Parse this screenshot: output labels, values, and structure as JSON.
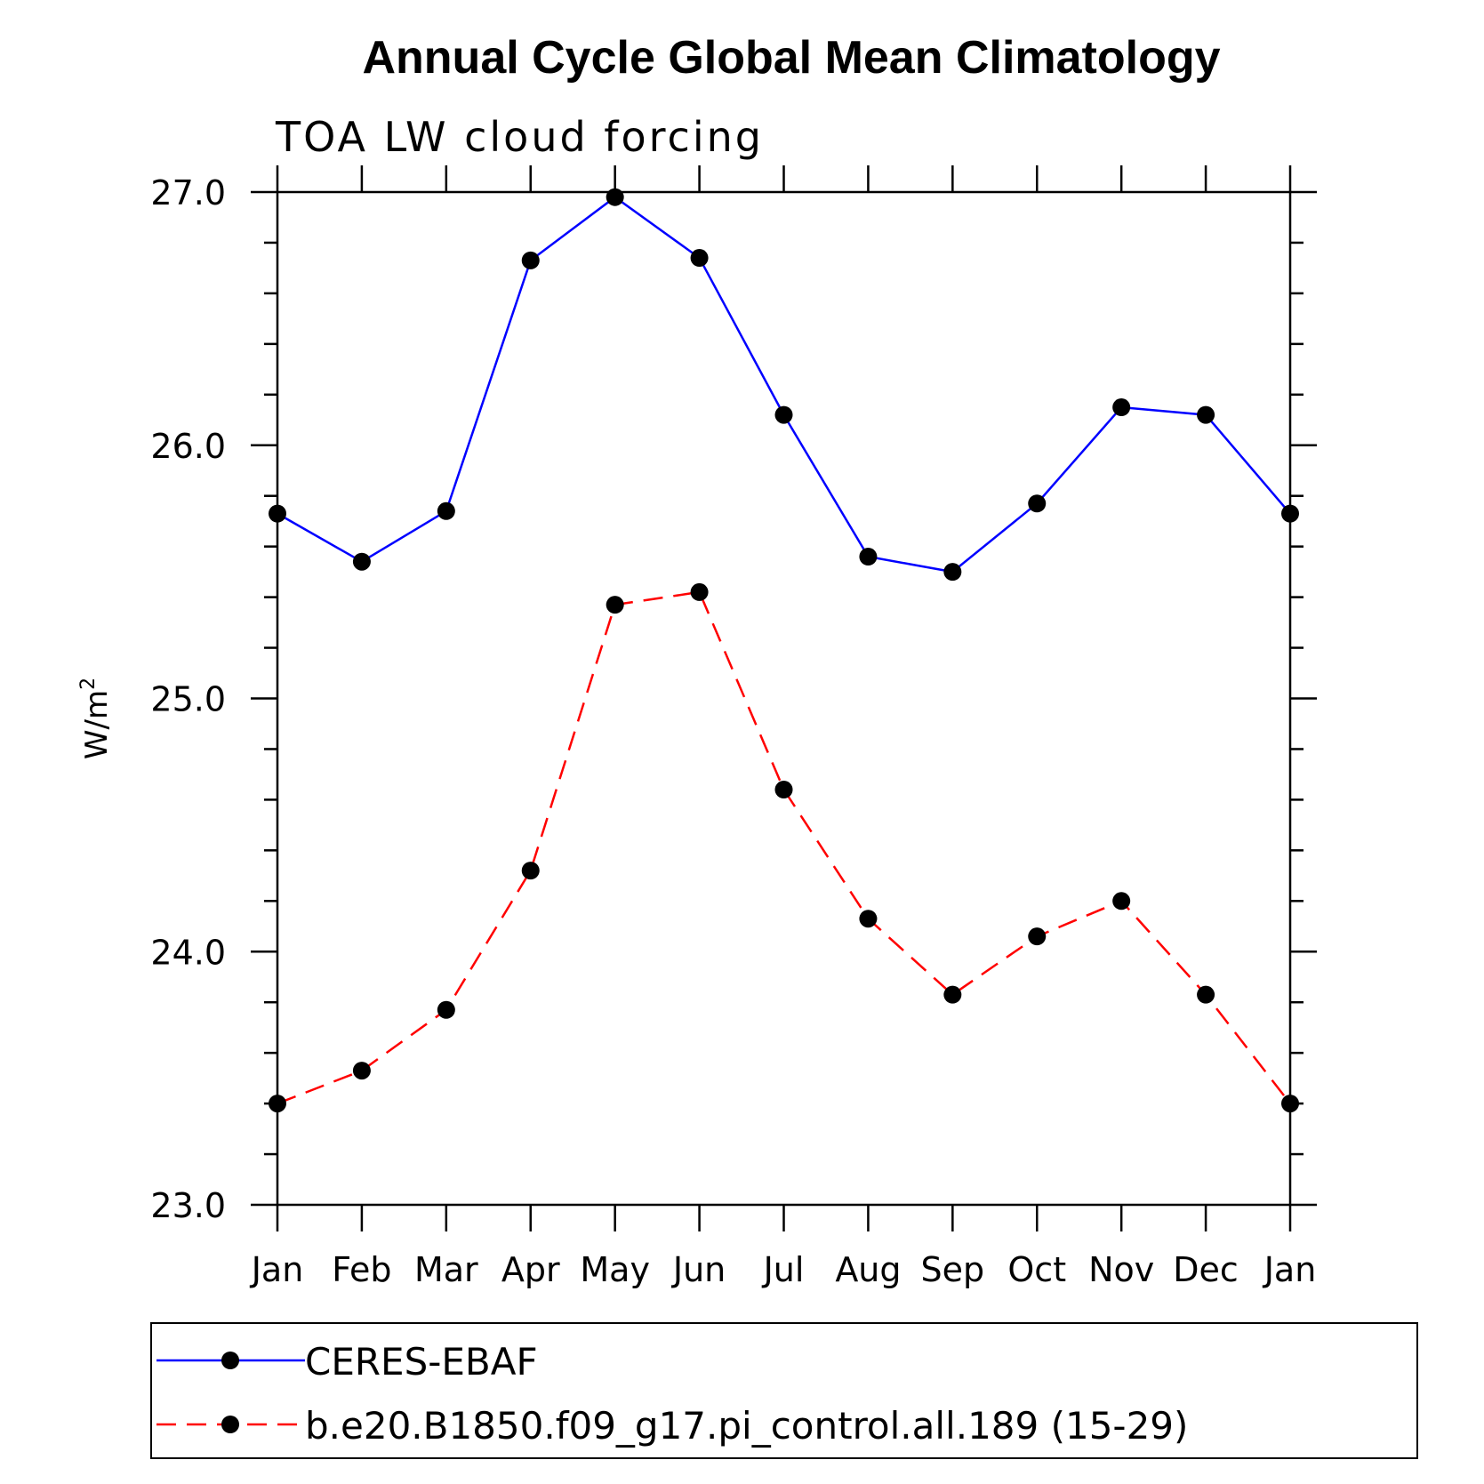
{
  "chart_data": {
    "type": "line",
    "title": "Annual Cycle Global Mean Climatology",
    "subtitle": "TOA LW cloud forcing",
    "ylabel": "W/m",
    "ylabel_superscript": "2",
    "xlabel": "",
    "categories": [
      "Jan",
      "Feb",
      "Mar",
      "Apr",
      "May",
      "Jun",
      "Jul",
      "Aug",
      "Sep",
      "Oct",
      "Nov",
      "Dec",
      "Jan"
    ],
    "ylim": [
      23.0,
      27.0
    ],
    "yticks": [
      "23.0",
      "24.0",
      "25.0",
      "26.0",
      "27.0"
    ],
    "grid": false,
    "legend_position": "bottom",
    "series": [
      {
        "name": "CERES-EBAF",
        "color": "#0000ff",
        "style": "solid",
        "values": [
          25.73,
          25.54,
          25.74,
          26.73,
          26.98,
          26.74,
          26.12,
          25.56,
          25.5,
          25.77,
          26.15,
          26.12,
          25.73
        ]
      },
      {
        "name": "b.e20.B1850.f09_g17.pi_control.all.189 (15-29)",
        "color": "#ff0000",
        "style": "dashed",
        "values": [
          23.4,
          23.53,
          23.77,
          24.32,
          25.37,
          25.42,
          24.64,
          24.13,
          23.83,
          24.06,
          24.2,
          23.83,
          23.4
        ]
      }
    ]
  }
}
